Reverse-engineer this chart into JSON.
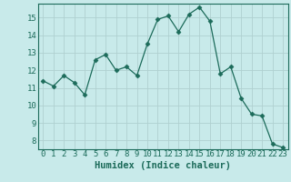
{
  "x": [
    0,
    1,
    2,
    3,
    4,
    5,
    6,
    7,
    8,
    9,
    10,
    11,
    12,
    13,
    14,
    15,
    16,
    17,
    18,
    19,
    20,
    21,
    22,
    23
  ],
  "y": [
    11.4,
    11.1,
    11.7,
    11.3,
    10.6,
    12.6,
    12.9,
    12.0,
    12.2,
    11.7,
    13.5,
    14.9,
    15.1,
    14.2,
    15.2,
    15.6,
    14.8,
    11.8,
    12.2,
    10.4,
    9.5,
    9.4,
    7.8,
    7.6
  ],
  "line_color": "#1c6b5a",
  "marker_color": "#1c6b5a",
  "marker_size": 2.5,
  "bg_color": "#c8eaea",
  "grid_color": "#b0d0d0",
  "axis_label_color": "#1c6b5a",
  "tick_label_color": "#1c6b5a",
  "spine_color": "#1c6b5a",
  "xlabel": "Humidex (Indice chaleur)",
  "xlabel_fontsize": 7.5,
  "tick_fontsize": 6.5,
  "ylim": [
    7.5,
    15.8
  ],
  "xlim": [
    -0.5,
    23.5
  ],
  "yticks": [
    8,
    9,
    10,
    11,
    12,
    13,
    14,
    15
  ],
  "xticks": [
    0,
    1,
    2,
    3,
    4,
    5,
    6,
    7,
    8,
    9,
    10,
    11,
    12,
    13,
    14,
    15,
    16,
    17,
    18,
    19,
    20,
    21,
    22,
    23
  ]
}
